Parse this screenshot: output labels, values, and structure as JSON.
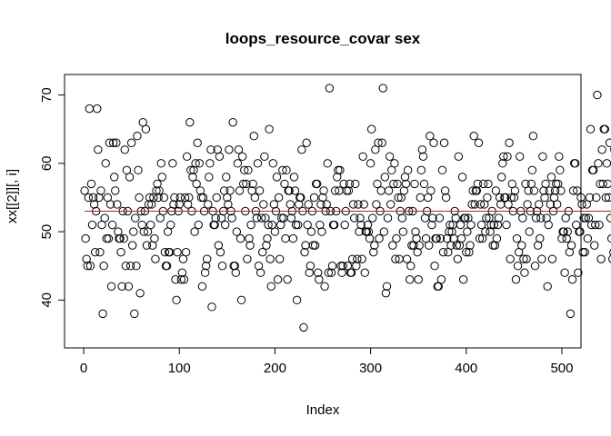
{
  "chart_data": {
    "type": "scatter",
    "title": "loops_resource_covar sex",
    "xlabel": "Index",
    "ylabel": "xx[[2]][, i]",
    "xlim": [
      -20,
      520
    ],
    "ylim": [
      33,
      73
    ],
    "xticks": [
      0,
      100,
      200,
      300,
      400,
      500
    ],
    "yticks": [
      40,
      50,
      60,
      70
    ],
    "reference_line": {
      "y": 53,
      "color": "#ff0000"
    },
    "series": [
      {
        "values": [
          56,
          49,
          46,
          45,
          55,
          68,
          45,
          57,
          51,
          55,
          54,
          47,
          53,
          68,
          62,
          55,
          47,
          56,
          51,
          38,
          45,
          52,
          60,
          49,
          55,
          49,
          63,
          54,
          42,
          51,
          63,
          58,
          56,
          63,
          54,
          50,
          49,
          49,
          47,
          42,
          53,
          49,
          62,
          45,
          59,
          53,
          42,
          58,
          45,
          63,
          48,
          50,
          38,
          52,
          45,
          64,
          59,
          55,
          41,
          53,
          51,
          66,
          50,
          53,
          65,
          48,
          50,
          54,
          55,
          51,
          54,
          48,
          55,
          49,
          46,
          56,
          57,
          55,
          56,
          52,
          60,
          58,
          53,
          55,
          47,
          45,
          45,
          50,
          47,
          47,
          51,
          53,
          60,
          54,
          55,
          43,
          40,
          47,
          53,
          54,
          55,
          43,
          44,
          46,
          43,
          55,
          47,
          61,
          54,
          55,
          66,
          59,
          53,
          58,
          59,
          50,
          60,
          57,
          63,
          51,
          60,
          56,
          55,
          42,
          55,
          53,
          44,
          45,
          46,
          54,
          58,
          60,
          62,
          39,
          53,
          51,
          51,
          52,
          55,
          62,
          48,
          61,
          47,
          52,
          45,
          53,
          56,
          51,
          58,
          55,
          54,
          62,
          56,
          53,
          52,
          66,
          45,
          45,
          44,
          50,
          60,
          62,
          56,
          49,
          40,
          61,
          57,
          59,
          53,
          57,
          46,
          59,
          49,
          48,
          51,
          56,
          57,
          64,
          55,
          53,
          52,
          60,
          45,
          56,
          44,
          52,
          47,
          54,
          61,
          52,
          48,
          49,
          51,
          65,
          46,
          42,
          51,
          60,
          54,
          50,
          53,
          58,
          43,
          55,
          46,
          51,
          52,
          59,
          52,
          57,
          49,
          59,
          43,
          56,
          56,
          54,
          52,
          53,
          49,
          58,
          56,
          51,
          40,
          51,
          54,
          55,
          55,
          62,
          53,
          36,
          47,
          48,
          63,
          51,
          54,
          44,
          45,
          50,
          53,
          48,
          55,
          48,
          57,
          57,
          44,
          43,
          51,
          54,
          50,
          55,
          56,
          42,
          53,
          54,
          60,
          44,
          71,
          53,
          44,
          45,
          51,
          51,
          56,
          53,
          58,
          59,
          56,
          59,
          45,
          44,
          45,
          57,
          51,
          53,
          56,
          45,
          56,
          57,
          44,
          44,
          46,
          54,
          52,
          57,
          45,
          46,
          54,
          50,
          52,
          51,
          46,
          61,
          54,
          44,
          50,
          50,
          51,
          50,
          49,
          60,
          65,
          52,
          47,
          48,
          62,
          54,
          57,
          63,
          49,
          53,
          56,
          63,
          71,
          50,
          58,
          41,
          42,
          52,
          56,
          61,
          54,
          59,
          48,
          57,
          60,
          46,
          49,
          57,
          55,
          46,
          53,
          55,
          52,
          50,
          56,
          58,
          57,
          46,
          59,
          53,
          43,
          45,
          48,
          53,
          48,
          57,
          50,
          49,
          47,
          43,
          48,
          55,
          59,
          62,
          61,
          57,
          52,
          49,
          53,
          55,
          48,
          64,
          56,
          51,
          52,
          63,
          45,
          49,
          49,
          42,
          42,
          52,
          49,
          43,
          59,
          47,
          63,
          56,
          55,
          49,
          47,
          50,
          51,
          48,
          50,
          51,
          49,
          53,
          52,
          48,
          46,
          61,
          48,
          51,
          49,
          58,
          43,
          52,
          52,
          47,
          50,
          52,
          47,
          48,
          51,
          54,
          56,
          64,
          54,
          56,
          56,
          57,
          63,
          49,
          54,
          51,
          49,
          57,
          54,
          50,
          52,
          55,
          57,
          52,
          50,
          51,
          53,
          48,
          51,
          48,
          56,
          49,
          51,
          52,
          55,
          54,
          58,
          60,
          61,
          55,
          55,
          51,
          61,
          54,
          63,
          46,
          55,
          57,
          53,
          55,
          56,
          43,
          49,
          45,
          47,
          61,
          53,
          48,
          52,
          46,
          44,
          57,
          46,
          54,
          56,
          50,
          53,
          57,
          59,
          64,
          56,
          45,
          52,
          53,
          48,
          54,
          49,
          52,
          46,
          61,
          56,
          55,
          57,
          52,
          42,
          51,
          56,
          54,
          58,
          46,
          53,
          55,
          56,
          57,
          54,
          57,
          61,
          59,
          56,
          49,
          50,
          50,
          44,
          52,
          49,
          50,
          53,
          47,
          38,
          48,
          43,
          56,
          60,
          60,
          51,
          56,
          44,
          50,
          50,
          55,
          54,
          47,
          52,
          47,
          52,
          54,
          49,
          52,
          55,
          65,
          51,
          59,
          59,
          48,
          51,
          55,
          70,
          60,
          51,
          57,
          46,
          62,
          57,
          65,
          65,
          55,
          60,
          57,
          55,
          63,
          52,
          49,
          46,
          47,
          62,
          49,
          53,
          56,
          53,
          51,
          52,
          50,
          57,
          41,
          47,
          46,
          39,
          52,
          51,
          49,
          43,
          55,
          51,
          56,
          52,
          57,
          55,
          53,
          51,
          50,
          48,
          45,
          49,
          57,
          46,
          43,
          57,
          53,
          48,
          44,
          57,
          44,
          49,
          55,
          56,
          52,
          61,
          54,
          43,
          44,
          60,
          51,
          53,
          57,
          54,
          47,
          54,
          48,
          54,
          55,
          59,
          56,
          46,
          61,
          47,
          55,
          50,
          56,
          44,
          38,
          45,
          52,
          57,
          53,
          57,
          51,
          54,
          59,
          48,
          56,
          46,
          48,
          53,
          50,
          44,
          54,
          50,
          54,
          55,
          55,
          51,
          56,
          53,
          54,
          57,
          52,
          56,
          62,
          54,
          56,
          53,
          52,
          53,
          43,
          54,
          42,
          56,
          54,
          55,
          49,
          65,
          58,
          54,
          57,
          60,
          54,
          46,
          52,
          61,
          49,
          54,
          48,
          56,
          51,
          50,
          46,
          52,
          62,
          56,
          51,
          44,
          55,
          54,
          47,
          63,
          57,
          50,
          53,
          56,
          51,
          53,
          46,
          57,
          45,
          52,
          56,
          48,
          53,
          52,
          58,
          52,
          56,
          55,
          57,
          45,
          52,
          50,
          64,
          57,
          44,
          55,
          51,
          53,
          61,
          63,
          53,
          50,
          45,
          57,
          51,
          46,
          59,
          58,
          48,
          56,
          47,
          57,
          54,
          54,
          44,
          56,
          56,
          58,
          55,
          45,
          53,
          43,
          59,
          48,
          60,
          55,
          51,
          54,
          52,
          53,
          46,
          53,
          50,
          41,
          49,
          54,
          56,
          50,
          58,
          56,
          49,
          60,
          56,
          55,
          52,
          51,
          50,
          52,
          47,
          58,
          49,
          52,
          56,
          51,
          45,
          54,
          49,
          57,
          53,
          58,
          44,
          59,
          52,
          56,
          50,
          48,
          53,
          51,
          56,
          57,
          53,
          54,
          45,
          56,
          49,
          52,
          61,
          55,
          51,
          56,
          53,
          51,
          48,
          52,
          57,
          54,
          46,
          50,
          55,
          52,
          56,
          51,
          57,
          49,
          53,
          58,
          51,
          45,
          53,
          57,
          52,
          50,
          54,
          55,
          48,
          51,
          56,
          57,
          52,
          53,
          47,
          58,
          51,
          55,
          50,
          54,
          57,
          52,
          45,
          59,
          54,
          50,
          51,
          56,
          53,
          52,
          49,
          55,
          51,
          54,
          58,
          50,
          53,
          47,
          56,
          52,
          55,
          49,
          53,
          57,
          51,
          50,
          54,
          56,
          48,
          52,
          55,
          53,
          57,
          50,
          51,
          54,
          56,
          49,
          52,
          55,
          53,
          50,
          57,
          51,
          54,
          56,
          52,
          49,
          53,
          55,
          51,
          57,
          50,
          54,
          52,
          56,
          53,
          51,
          55,
          49,
          54,
          57,
          52,
          50,
          53,
          56,
          51,
          54,
          52,
          55,
          53,
          50,
          57,
          52,
          54,
          51,
          56,
          53,
          49,
          55,
          52,
          57,
          50,
          54,
          53,
          51,
          56,
          52,
          55,
          50,
          54,
          57,
          53,
          51,
          52,
          56,
          49,
          55,
          53,
          50,
          54,
          52,
          57,
          51,
          56,
          53,
          55,
          50,
          52,
          54,
          51,
          57,
          53,
          56,
          49,
          52,
          55,
          50,
          54
        ]
      }
    ]
  }
}
